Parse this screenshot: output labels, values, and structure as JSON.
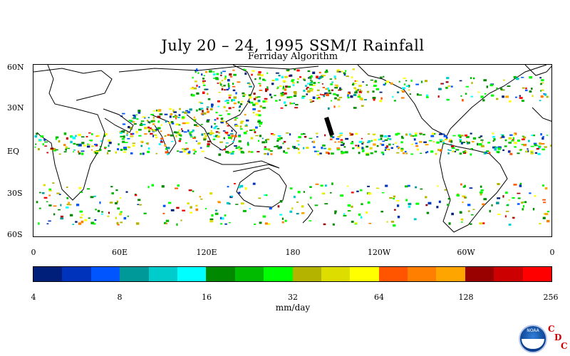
{
  "title": "July 20 – 24, 1995 SSM/I Rainfall",
  "subtitle": "Ferriday Algorithm",
  "map": {
    "lat_labels": [
      "60N",
      "30N",
      "EQ",
      "30S",
      "60S"
    ],
    "lon_labels": [
      "0",
      "60E",
      "120E",
      "180",
      "120W",
      "60W",
      "0"
    ]
  },
  "colorbar": {
    "colors": [
      "#001f7a",
      "#0033bb",
      "#0055ff",
      "#009999",
      "#00cccc",
      "#00ffff",
      "#008800",
      "#00bb00",
      "#00ff00",
      "#b3b300",
      "#dddd00",
      "#ffff00",
      "#ff5500",
      "#ff7f00",
      "#ffa500",
      "#990000",
      "#cc0000",
      "#ff0000"
    ],
    "tick_labels": [
      "4",
      "8",
      "16",
      "32",
      "64",
      "128",
      "256"
    ],
    "unit": "mm/day"
  },
  "logo": {
    "text": "NOAA",
    "cdc_letters": [
      "C",
      "D",
      "C"
    ]
  }
}
